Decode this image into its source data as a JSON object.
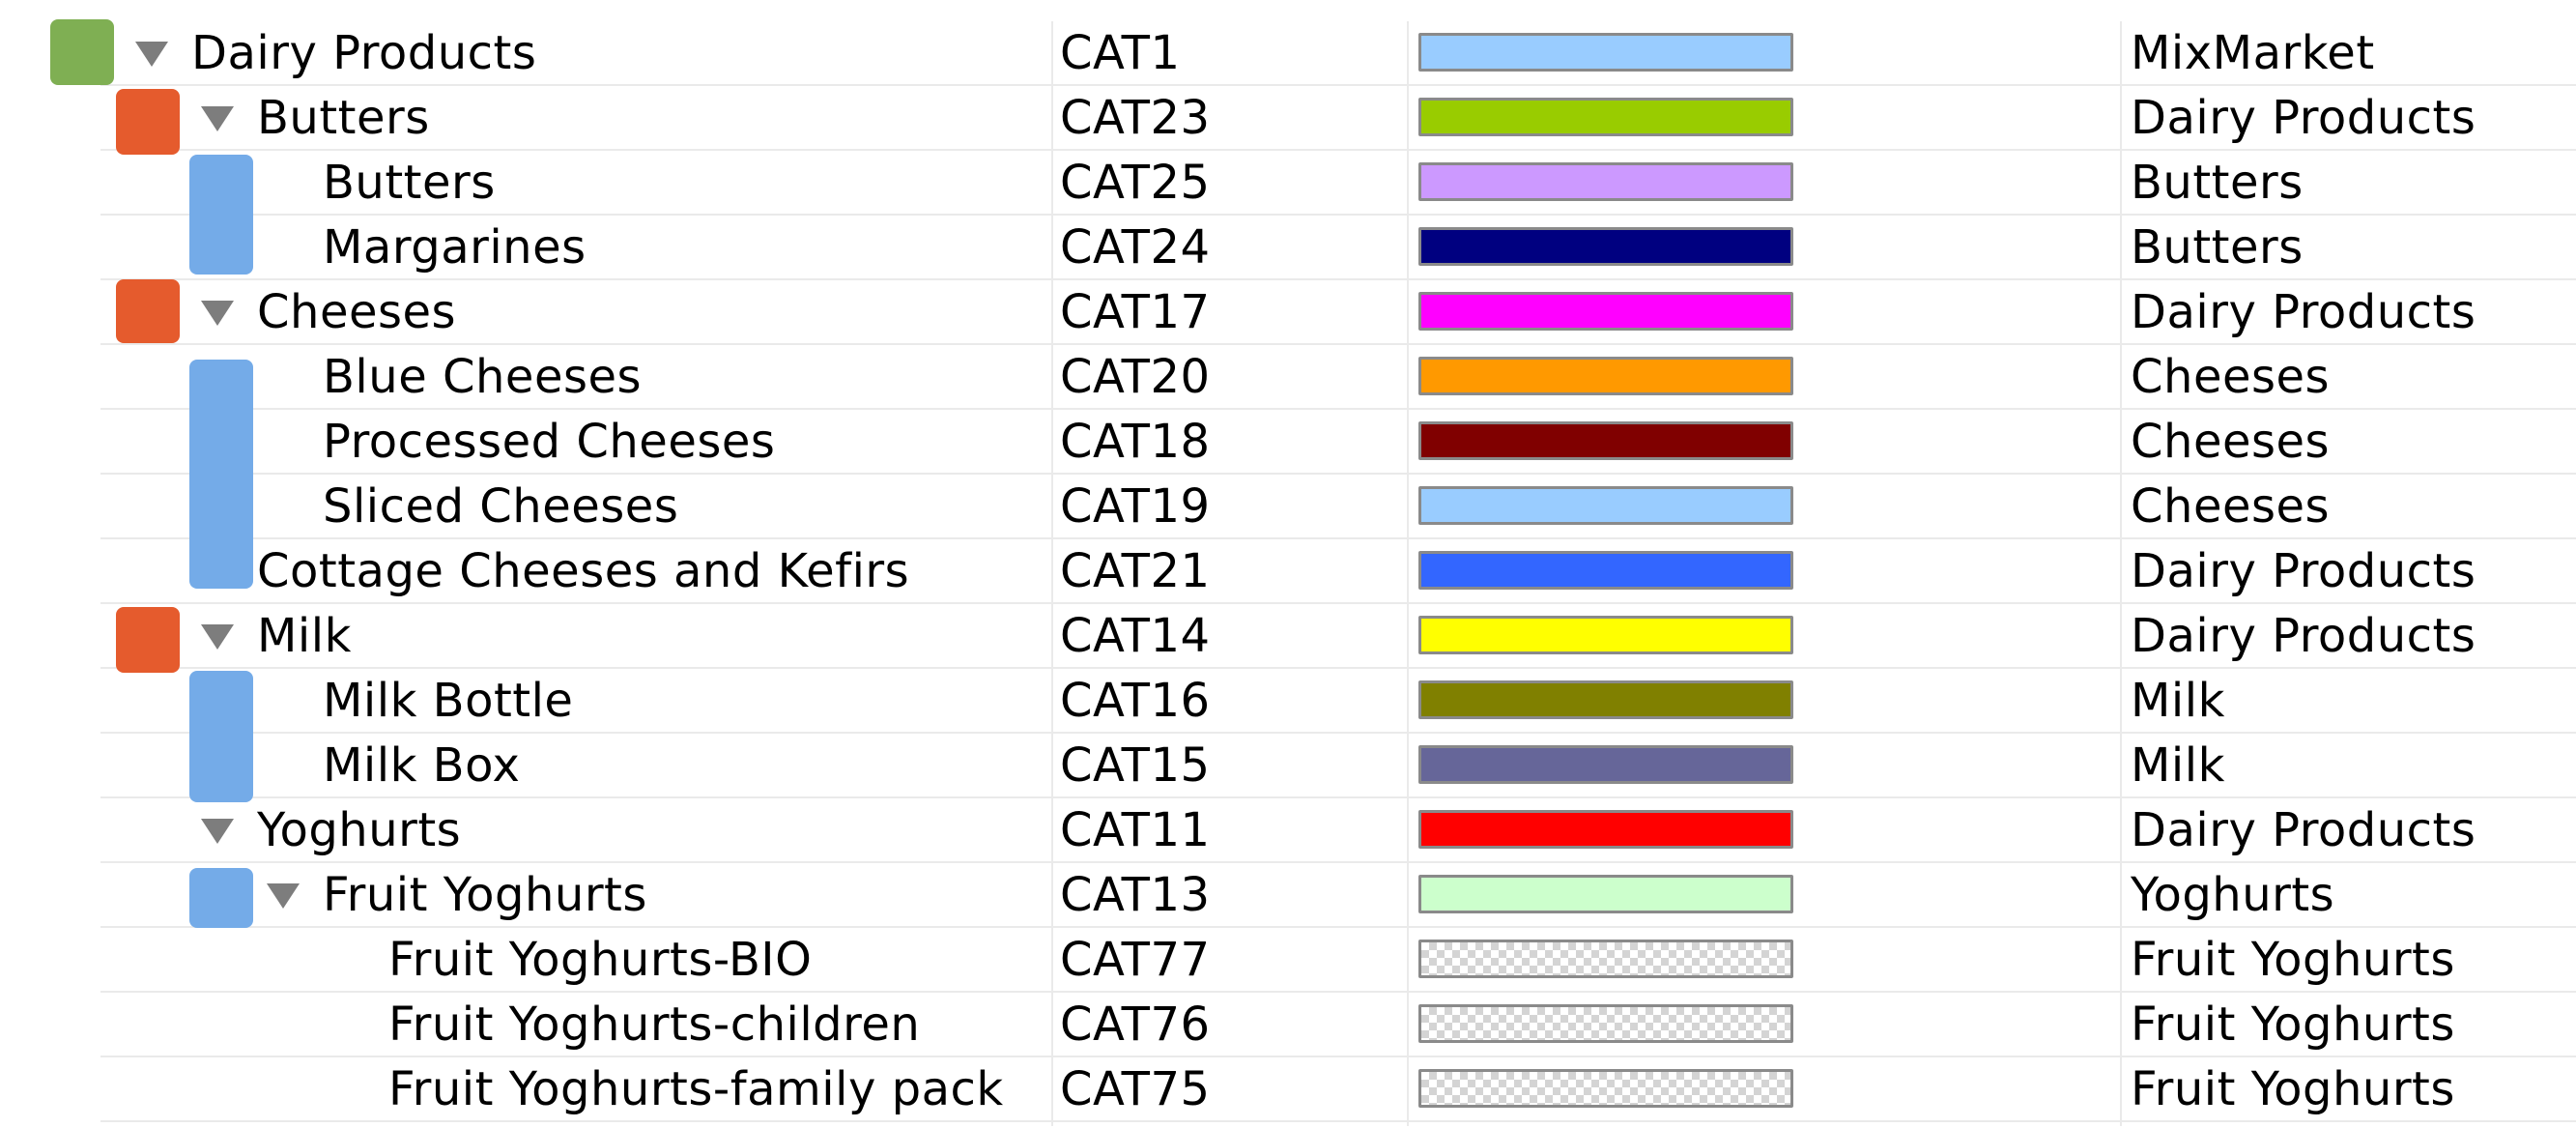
{
  "colors": {
    "level_root_marker": "#7faf53",
    "level_group_marker": "#e55b2d",
    "level_leaf_marker": "#74abe8",
    "toggle_triangle": "#7d7d7d",
    "grid_line": "#eaeaea",
    "swatch_border": "#8a8a8a"
  },
  "columns": [
    "name",
    "code",
    "color",
    "parent"
  ],
  "rows": [
    {
      "name": "Dairy Products",
      "code": "CAT1",
      "color": "#99ccff",
      "parent": "MixMarket",
      "level": 0,
      "expanded": true
    },
    {
      "name": "Butters",
      "code": "CAT23",
      "color": "#99cc00",
      "parent": "Dairy Products",
      "level": 1,
      "expanded": true
    },
    {
      "name": "Butters",
      "code": "CAT25",
      "color": "#cc99ff",
      "parent": "Butters",
      "level": 2
    },
    {
      "name": "Margarines",
      "code": "CAT24",
      "color": "#000080",
      "parent": "Butters",
      "level": 2
    },
    {
      "name": "Cheeses",
      "code": "CAT17",
      "color": "#ff00ff",
      "parent": "Dairy Products",
      "level": 1,
      "expanded": true
    },
    {
      "name": "Blue Cheeses",
      "code": "CAT20",
      "color": "#ff9900",
      "parent": "Cheeses",
      "level": 2
    },
    {
      "name": "Processed Cheeses",
      "code": "CAT18",
      "color": "#800000",
      "parent": "Cheeses",
      "level": 2
    },
    {
      "name": "Sliced Cheeses",
      "code": "CAT19",
      "color": "#99ccff",
      "parent": "Cheeses",
      "level": 2
    },
    {
      "name": "Cottage Cheeses and Kefirs",
      "code": "CAT21",
      "color": "#3366ff",
      "parent": "Dairy Products",
      "level": 1
    },
    {
      "name": "Milk",
      "code": "CAT14",
      "color": "#ffff00",
      "parent": "Dairy Products",
      "level": 1,
      "expanded": true
    },
    {
      "name": "Milk Bottle",
      "code": "CAT16",
      "color": "#808000",
      "parent": "Milk",
      "level": 2
    },
    {
      "name": "Milk Box",
      "code": "CAT15",
      "color": "#666699",
      "parent": "Milk",
      "level": 2
    },
    {
      "name": "Yoghurts",
      "code": "CAT11",
      "color": "#ff0000",
      "parent": "Dairy Products",
      "level": 1,
      "expanded": true
    },
    {
      "name": "Fruit Yoghurts",
      "code": "CAT13",
      "color": "#ccffcc",
      "parent": "Yoghurts",
      "level": 2,
      "expanded": true
    },
    {
      "name": "Fruit Yoghurts-BIO",
      "code": "CAT77",
      "color": "none",
      "parent": "Fruit Yoghurts",
      "level": 3
    },
    {
      "name": "Fruit Yoghurts-children",
      "code": "CAT76",
      "color": "none",
      "parent": "Fruit Yoghurts",
      "level": 3
    },
    {
      "name": "Fruit Yoghurts-family pack",
      "code": "CAT75",
      "color": "none",
      "parent": "Fruit Yoghurts",
      "level": 3
    }
  ]
}
